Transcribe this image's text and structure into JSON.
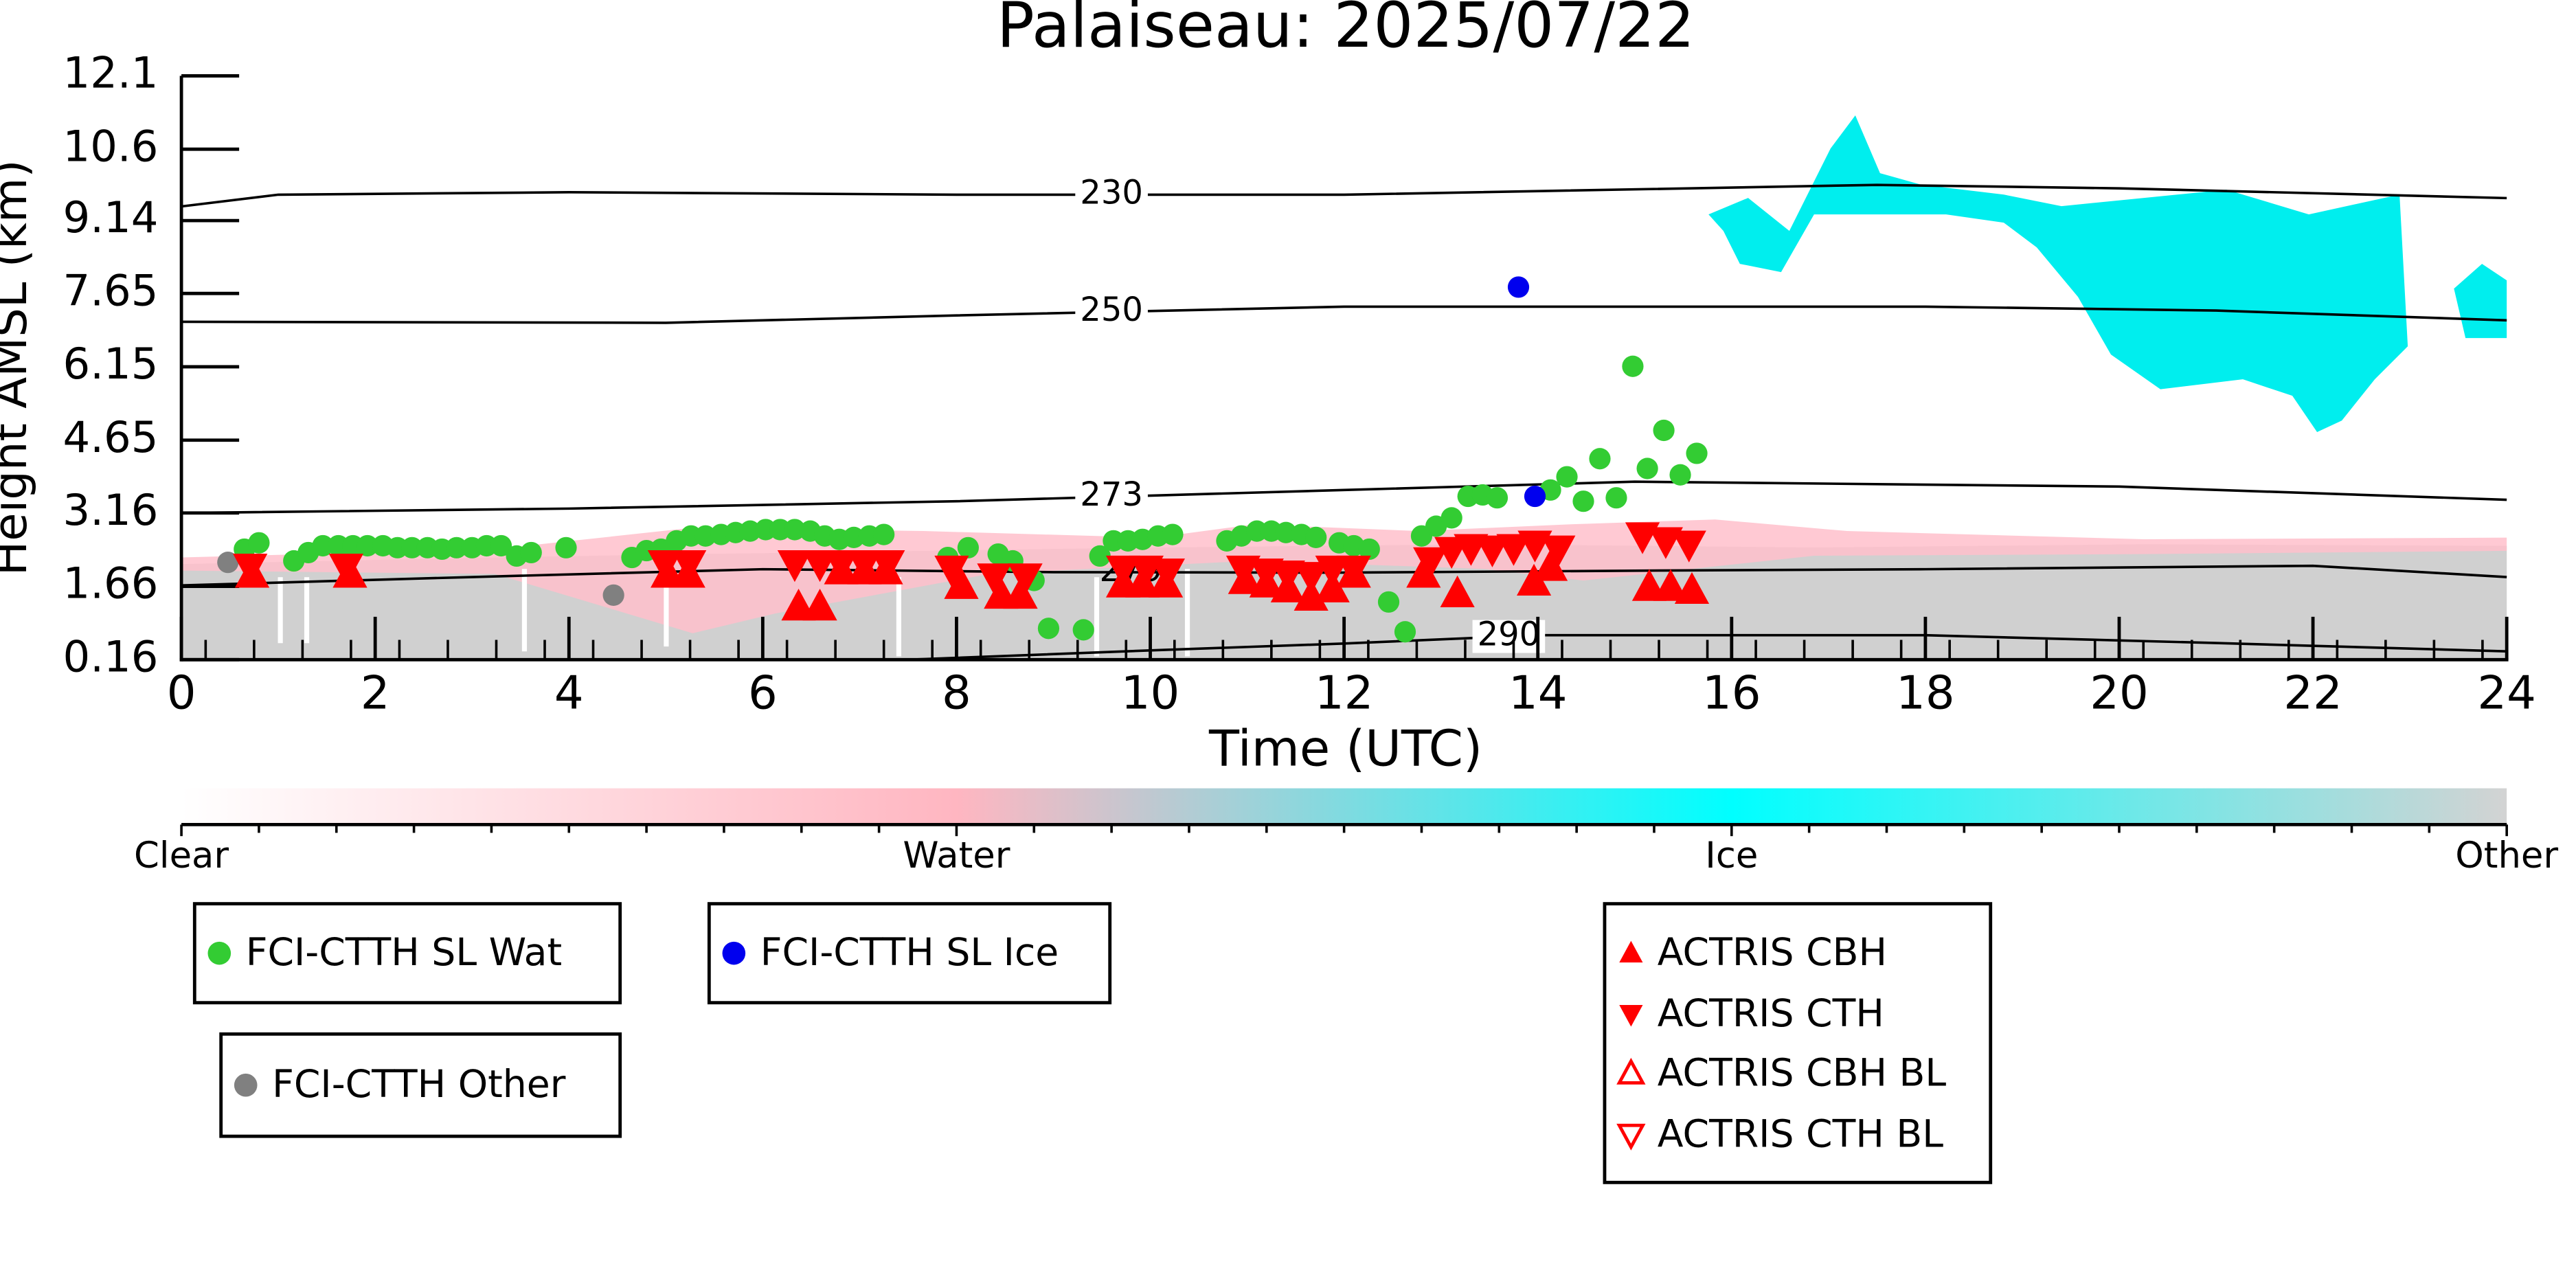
{
  "chart_data": {
    "type": "scatter",
    "title": "Palaiseau: 2025/07/22",
    "xlabel": "Time (UTC)",
    "ylabel": "Height AMSL (km)",
    "xlim": [
      0,
      24
    ],
    "xticks": [
      0,
      2,
      4,
      6,
      8,
      10,
      12,
      14,
      16,
      18,
      20,
      22,
      24
    ],
    "ylim": [
      0.16,
      12.1
    ],
    "yticks": [
      0.16,
      1.66,
      3.16,
      4.65,
      6.15,
      7.65,
      9.14,
      10.6,
      12.1
    ],
    "series": [
      {
        "name": "FCI-CTTH SL Wat",
        "color": "#33cc33",
        "marker": "o",
        "filled": true,
        "x": [
          0.65,
          0.8,
          1.16,
          1.31,
          1.46,
          1.62,
          1.77,
          1.92,
          2.08,
          2.23,
          2.38,
          2.54,
          2.69,
          2.84,
          3.0,
          3.15,
          3.3,
          3.46,
          3.61,
          3.97,
          4.65,
          4.8,
          4.95,
          5.11,
          5.26,
          5.41,
          5.57,
          5.72,
          5.87,
          6.03,
          6.18,
          6.33,
          6.49,
          6.64,
          6.79,
          6.94,
          7.1,
          7.25,
          7.91,
          8.12,
          8.43,
          8.58,
          8.8,
          8.95,
          9.31,
          9.48,
          9.62,
          9.77,
          9.92,
          10.08,
          10.23,
          10.79,
          10.94,
          11.1,
          11.25,
          11.4,
          11.56,
          11.71,
          11.95,
          12.1,
          12.26,
          12.46,
          12.63,
          12.8,
          12.95,
          13.11,
          13.28,
          13.43,
          13.58,
          14.13,
          14.3,
          14.47,
          14.64,
          14.81,
          14.98,
          15.13,
          15.3,
          15.47,
          15.64
        ],
        "y": [
          2.42,
          2.55,
          2.18,
          2.35,
          2.49,
          2.49,
          2.49,
          2.49,
          2.49,
          2.45,
          2.45,
          2.45,
          2.42,
          2.45,
          2.45,
          2.49,
          2.49,
          2.28,
          2.35,
          2.45,
          2.25,
          2.39,
          2.42,
          2.59,
          2.69,
          2.69,
          2.72,
          2.76,
          2.79,
          2.82,
          2.82,
          2.82,
          2.79,
          2.69,
          2.62,
          2.66,
          2.69,
          2.72,
          2.25,
          2.45,
          2.32,
          2.18,
          1.78,
          0.8,
          0.77,
          2.28,
          2.59,
          2.59,
          2.62,
          2.69,
          2.72,
          2.59,
          2.69,
          2.79,
          2.79,
          2.76,
          2.72,
          2.66,
          2.55,
          2.49,
          2.42,
          1.34,
          0.73,
          2.69,
          2.89,
          3.06,
          3.5,
          3.53,
          3.47,
          3.63,
          3.9,
          3.4,
          4.27,
          3.47,
          6.16,
          4.07,
          4.85,
          3.94,
          4.38
        ]
      },
      {
        "name": "FCI-CTTH SL Ice",
        "color": "#0000ee",
        "marker": "o",
        "filled": true,
        "x": [
          13.8,
          13.97
        ],
        "y": [
          7.78,
          3.5
        ]
      },
      {
        "name": "FCI-CTTH Other",
        "color": "#808080",
        "marker": "o",
        "filled": true,
        "x": [
          0.48,
          4.46
        ],
        "y": [
          2.15,
          1.48
        ]
      },
      {
        "name": "ACTRIS CBH",
        "color": "#ff0000",
        "marker": "^",
        "filled": true,
        "x": [
          0.73,
          1.74,
          5.02,
          5.23,
          6.37,
          6.59,
          6.81,
          7.05,
          7.27,
          8.05,
          8.46,
          8.66,
          9.72,
          9.92,
          10.16,
          10.98,
          11.2,
          11.42,
          11.66,
          11.88,
          12.1,
          12.82,
          13.17,
          13.96,
          14.13,
          15.15,
          15.37,
          15.59
        ],
        "y": [
          1.91,
          1.91,
          1.91,
          1.91,
          1.24,
          1.24,
          1.98,
          1.98,
          1.98,
          1.68,
          1.48,
          1.48,
          1.71,
          1.71,
          1.71,
          1.78,
          1.71,
          1.61,
          1.44,
          1.61,
          1.91,
          1.91,
          1.51,
          1.75,
          2.05,
          1.64,
          1.64,
          1.58
        ]
      },
      {
        "name": "ACTRIS CTH",
        "color": "#ff0000",
        "marker": "v",
        "filled": true,
        "x": [
          0.71,
          1.7,
          4.99,
          5.24,
          6.33,
          6.59,
          6.81,
          7.05,
          7.29,
          7.95,
          8.39,
          8.71,
          9.72,
          9.96,
          10.18,
          10.96,
          11.2,
          11.42,
          11.66,
          11.88,
          12.1,
          12.89,
          13.11,
          13.31,
          13.53,
          13.75,
          13.97,
          14.21,
          15.08,
          15.32,
          15.56
        ],
        "y": [
          2.05,
          2.05,
          2.12,
          2.12,
          2.12,
          2.12,
          2.12,
          2.12,
          2.12,
          2.01,
          1.85,
          1.85,
          2.01,
          2.01,
          1.95,
          2.01,
          1.95,
          1.91,
          1.88,
          2.01,
          2.01,
          2.18,
          2.39,
          2.45,
          2.42,
          2.45,
          2.52,
          2.42,
          2.69,
          2.59,
          2.52
        ]
      },
      {
        "name": "ACTRIS CBH BL",
        "color": "#ff0000",
        "marker": "^",
        "filled": false,
        "x": [],
        "y": []
      },
      {
        "name": "ACTRIS CTH BL",
        "color": "#ff0000",
        "marker": "v",
        "filled": false,
        "x": [],
        "y": []
      }
    ],
    "contours": [
      {
        "label": "230",
        "x": [
          0,
          1,
          4,
          8,
          12,
          17.5,
          20,
          24
        ],
        "y": [
          9.43,
          9.67,
          9.72,
          9.67,
          9.67,
          9.87,
          9.8,
          9.6
        ]
      },
      {
        "label": "250",
        "x": [
          0,
          5,
          8,
          12,
          18,
          21,
          24
        ],
        "y": [
          7.07,
          7.05,
          7.2,
          7.38,
          7.38,
          7.3,
          7.1
        ]
      },
      {
        "label": "273",
        "x": [
          0,
          4,
          8,
          12,
          15,
          20,
          24
        ],
        "y": [
          3.16,
          3.25,
          3.4,
          3.63,
          3.8,
          3.7,
          3.43
        ]
      },
      {
        "label": "279",
        "x": [
          0,
          3,
          6,
          9,
          12,
          15,
          18,
          22,
          24
        ],
        "y": [
          1.68,
          1.85,
          2.01,
          1.95,
          1.94,
          1.98,
          2.01,
          2.08,
          1.85
        ]
      },
      {
        "label": "290",
        "x": [
          7.5,
          10,
          12,
          14,
          18,
          21,
          24
        ],
        "y": [
          0.16,
          0.35,
          0.49,
          0.66,
          0.66,
          0.5,
          0.33
        ]
      }
    ],
    "colorbar": {
      "labels": [
        "Clear",
        "Water",
        "Ice",
        "Other"
      ],
      "colors": [
        "#ffffff",
        "#ffb6c1",
        "#00ffff",
        "#d3d3d3"
      ]
    }
  }
}
